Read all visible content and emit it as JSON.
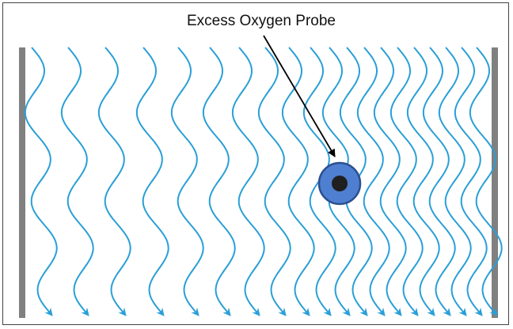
{
  "annotation": {
    "label": "Excess Oxygen Probe"
  },
  "colors": {
    "wave": "#2a9fd6",
    "wall": "#808080",
    "probe_outer": "#4f7fd1",
    "probe_ring": "#2b4f8f",
    "probe_core": "#1f1f1f",
    "frame": "#444444"
  },
  "icons": {
    "streamline_arrow": "arrowhead-down-right-icon",
    "pointer": "arrow-icon"
  }
}
